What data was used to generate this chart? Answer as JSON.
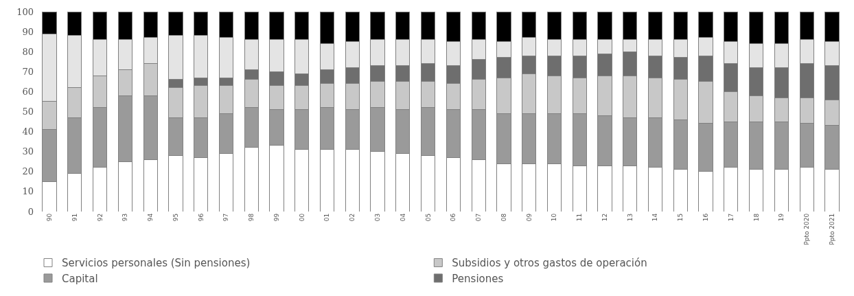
{
  "chart_data": {
    "type": "bar",
    "stacked": true,
    "categories": [
      "90",
      "91",
      "92",
      "93",
      "94",
      "95",
      "96",
      "97",
      "98",
      "99",
      "00",
      "01",
      "02",
      "03",
      "04",
      "05",
      "06",
      "07",
      "08",
      "09",
      "10",
      "11",
      "12",
      "13",
      "14",
      "15",
      "16",
      "17",
      "18",
      "19",
      "Ppto 2020",
      "Ppto 2021"
    ],
    "series": [
      {
        "name": "Servicios personales (Sin pensiones)",
        "color": "#ffffff",
        "values": [
          15,
          19,
          22,
          25,
          26,
          28,
          27,
          29,
          32,
          33,
          31,
          31,
          31,
          30,
          29,
          28,
          27,
          26,
          24,
          24,
          24,
          23,
          23,
          23,
          22,
          21,
          20,
          22,
          21,
          21,
          22,
          21
        ]
      },
      {
        "name": "Capital",
        "color": "#9a9a9a",
        "values": [
          26,
          28,
          30,
          33,
          32,
          19,
          20,
          20,
          20,
          18,
          20,
          21,
          20,
          22,
          22,
          24,
          24,
          25,
          25,
          25,
          25,
          26,
          25,
          24,
          25,
          25,
          24,
          23,
          24,
          24,
          22,
          22
        ]
      },
      {
        "name": "Subsidios y otros gastos de operación",
        "color": "#c8c8c8",
        "values": [
          14,
          15,
          16,
          13,
          16,
          15,
          16,
          14,
          14,
          12,
          12,
          12,
          13,
          13,
          14,
          13,
          13,
          15,
          18,
          20,
          19,
          18,
          20,
          21,
          20,
          20,
          21,
          15,
          13,
          12,
          13,
          13
        ]
      },
      {
        "name": "Pensiones",
        "color": "#6e6e6e",
        "values": [
          0,
          0,
          0,
          0,
          0,
          4,
          4,
          4,
          5,
          7,
          6,
          7,
          8,
          8,
          8,
          9,
          9,
          10,
          10,
          9,
          10,
          11,
          11,
          12,
          11,
          11,
          13,
          14,
          14,
          15,
          17,
          17
        ]
      },
      {
        "color": "#e4e4e4",
        "values": [
          34,
          26,
          18,
          15,
          13,
          22,
          21,
          20,
          15,
          16,
          17,
          13,
          13,
          13,
          13,
          12,
          12,
          10,
          8,
          9,
          8,
          8,
          7,
          6,
          8,
          9,
          9,
          11,
          12,
          12,
          12,
          12
        ]
      },
      {
        "color": "#000000",
        "values": [
          11,
          12,
          14,
          14,
          13,
          12,
          12,
          13,
          14,
          14,
          14,
          16,
          15,
          14,
          14,
          14,
          15,
          14,
          15,
          13,
          14,
          14,
          14,
          14,
          14,
          14,
          13,
          15,
          16,
          16,
          14,
          15
        ]
      }
    ],
    "ylim": [
      0,
      100
    ],
    "yticks": [
      0,
      10,
      20,
      30,
      40,
      50,
      60,
      70,
      80,
      90,
      100
    ],
    "legend": "bottom"
  }
}
